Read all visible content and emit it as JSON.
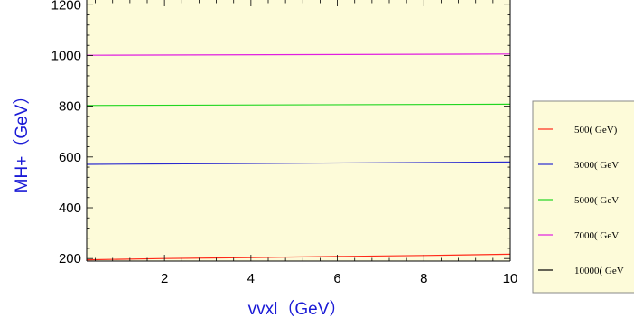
{
  "chart_data": {
    "type": "line",
    "xlabel": "vvxl（GeV）",
    "ylabel": "MH+（GeV）",
    "xlim": [
      0.2,
      10
    ],
    "ylim": [
      190,
      1290
    ],
    "x_ticks": [
      2,
      4,
      6,
      8,
      10
    ],
    "y_ticks": [
      200,
      400,
      600,
      800,
      1000,
      1200
    ],
    "grid": false,
    "legend_position": "right",
    "plot_background": "#fdfbd9",
    "axis_title_color": "#1a1ad6",
    "series": [
      {
        "name": "500( GeV)",
        "color": "#ff2a1a",
        "x": [
          0.2,
          2,
          4,
          6,
          8,
          10
        ],
        "y": [
          195,
          200,
          204,
          208,
          212,
          217
        ]
      },
      {
        "name": "3000( GeV",
        "color": "#2b2bd0",
        "x": [
          0.2,
          10
        ],
        "y": [
          571,
          580
        ]
      },
      {
        "name": "5000( GeV",
        "color": "#22d622",
        "x": [
          0.2,
          10
        ],
        "y": [
          803,
          808
        ]
      },
      {
        "name": "7000( GeV",
        "color": "#e01ee0",
        "x": [
          0.2,
          10
        ],
        "y": [
          1001,
          1006
        ]
      },
      {
        "name": "10000( GeV",
        "color": "#000000",
        "x": [],
        "y": []
      }
    ]
  }
}
